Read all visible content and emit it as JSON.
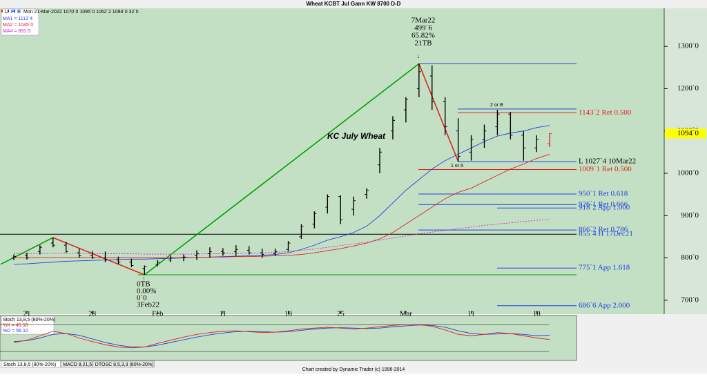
{
  "chart_data": {
    "type": "ohlc",
    "title": "Wheat KCBT Jul Gann KW 8700 D-D",
    "toolbar": [
      "L",
      "F",
      "R"
    ],
    "quote": "Mon 21-Mar-2022   1070`0   1095`0   1062`2   1094`0   32`0",
    "ma_legend": [
      {
        "label": "MA1 = 1113`4",
        "color": "#2040e0"
      },
      {
        "label": "MA2 = 1045`0",
        "color": "#e02020"
      },
      {
        "label": "MA4 = 891`5",
        "color": "#d020d0"
      }
    ],
    "ylim": [
      667,
      1390
    ],
    "yticks": [
      {
        "value": 1300,
        "label": "1300`0"
      },
      {
        "value": 1200,
        "label": "1200`0"
      },
      {
        "value": 1100,
        "label": "1100`0"
      },
      {
        "value": 1000,
        "label": "1000`0"
      },
      {
        "value": 900,
        "label": "900`0"
      },
      {
        "value": 800,
        "label": "800`0"
      },
      {
        "value": 700,
        "label": "700`0"
      }
    ],
    "last_price": {
      "value": 1094,
      "label": "1094`0"
    },
    "xticks": [
      {
        "value": 1,
        "label": "21"
      },
      {
        "value": 6,
        "label": "28"
      },
      {
        "value": 11,
        "label": "Feb"
      },
      {
        "value": 16,
        "label": "11"
      },
      {
        "value": 21,
        "label": "18"
      },
      {
        "value": 25,
        "label": "25"
      },
      {
        "value": 30,
        "label": "Mar"
      },
      {
        "value": 35,
        "label": "11"
      },
      {
        "value": 40,
        "label": "18"
      }
    ],
    "bar_color": "#000000",
    "last_bar_color": "#e02020",
    "bars": [
      {
        "o": 800,
        "h": 808,
        "l": 795,
        "c": 803
      },
      {
        "o": 805,
        "h": 812,
        "l": 796,
        "c": 800
      },
      {
        "o": 815,
        "h": 830,
        "l": 808,
        "c": 825
      },
      {
        "o": 835,
        "h": 848,
        "l": 825,
        "c": 830
      },
      {
        "o": 830,
        "h": 838,
        "l": 812,
        "c": 815
      },
      {
        "o": 812,
        "h": 822,
        "l": 800,
        "c": 805
      },
      {
        "o": 806,
        "h": 816,
        "l": 798,
        "c": 800
      },
      {
        "o": 800,
        "h": 815,
        "l": 790,
        "c": 795
      },
      {
        "o": 795,
        "h": 803,
        "l": 785,
        "c": 790
      },
      {
        "o": 790,
        "h": 798,
        "l": 778,
        "c": 782
      },
      {
        "o": 775,
        "h": 782,
        "l": 760,
        "c": 780
      },
      {
        "o": 785,
        "h": 795,
        "l": 780,
        "c": 790
      },
      {
        "o": 795,
        "h": 805,
        "l": 790,
        "c": 800
      },
      {
        "o": 800,
        "h": 808,
        "l": 792,
        "c": 802
      },
      {
        "o": 805,
        "h": 818,
        "l": 795,
        "c": 810
      },
      {
        "o": 810,
        "h": 825,
        "l": 800,
        "c": 815
      },
      {
        "o": 815,
        "h": 823,
        "l": 805,
        "c": 812
      },
      {
        "o": 815,
        "h": 830,
        "l": 805,
        "c": 820
      },
      {
        "o": 818,
        "h": 828,
        "l": 808,
        "c": 812
      },
      {
        "o": 812,
        "h": 822,
        "l": 800,
        "c": 808
      },
      {
        "o": 810,
        "h": 822,
        "l": 805,
        "c": 815
      },
      {
        "o": 820,
        "h": 840,
        "l": 815,
        "c": 835
      },
      {
        "o": 850,
        "h": 880,
        "l": 845,
        "c": 875
      },
      {
        "o": 880,
        "h": 910,
        "l": 870,
        "c": 905
      },
      {
        "o": 920,
        "h": 950,
        "l": 905,
        "c": 945
      },
      {
        "o": 945,
        "h": 948,
        "l": 880,
        "c": 890
      },
      {
        "o": 915,
        "h": 945,
        "l": 900,
        "c": 935
      },
      {
        "o": 950,
        "h": 965,
        "l": 940,
        "c": 960
      },
      {
        "o": 1020,
        "h": 1060,
        "l": 1000,
        "c": 1050
      },
      {
        "o": 1100,
        "h": 1135,
        "l": 1080,
        "c": 1125
      },
      {
        "o": 1150,
        "h": 1180,
        "l": 1120,
        "c": 1175
      },
      {
        "o": 1200,
        "h": 1259,
        "l": 1180,
        "c": 1240
      },
      {
        "o": 1230,
        "h": 1255,
        "l": 1150,
        "c": 1170
      },
      {
        "o": 1170,
        "h": 1180,
        "l": 1090,
        "c": 1110
      },
      {
        "o": 1100,
        "h": 1130,
        "l": 1028,
        "c": 1040
      },
      {
        "o": 1050,
        "h": 1090,
        "l": 1030,
        "c": 1080
      },
      {
        "o": 1080,
        "h": 1115,
        "l": 1060,
        "c": 1100
      },
      {
        "o": 1110,
        "h": 1150,
        "l": 1090,
        "c": 1140
      },
      {
        "o": 1140,
        "h": 1145,
        "l": 1080,
        "c": 1090
      },
      {
        "o": 1090,
        "h": 1100,
        "l": 1030,
        "c": 1060
      },
      {
        "o": 1060,
        "h": 1090,
        "l": 1050,
        "c": 1080
      },
      {
        "o": 1070,
        "h": 1095,
        "l": 1062,
        "c": 1094
      }
    ],
    "series": [
      {
        "name": "MA1",
        "color": "#2040e0",
        "values": [
          785,
          786,
          788,
          790,
          792,
          793,
          794,
          795,
          796,
          797,
          797,
          798,
          799,
          800,
          801,
          802,
          803,
          804,
          805,
          806,
          808,
          812,
          820,
          830,
          842,
          850,
          860,
          875,
          900,
          930,
          960,
          985,
          1010,
          1030,
          1045,
          1060,
          1075,
          1088,
          1095,
          1100,
          1108,
          1113
        ]
      },
      {
        "name": "MA2",
        "color": "#e02020",
        "values": [
          800,
          800,
          801,
          801,
          801,
          801,
          801,
          800,
          800,
          800,
          800,
          800,
          800,
          801,
          801,
          802,
          802,
          803,
          803,
          804,
          805,
          806,
          808,
          812,
          817,
          822,
          828,
          835,
          845,
          860,
          880,
          900,
          920,
          940,
          955,
          965,
          980,
          995,
          1010,
          1022,
          1035,
          1045
        ]
      },
      {
        "name": "MA4",
        "color": "#d020d0",
        "dashed": true,
        "values": [
          810,
          810,
          811,
          811,
          811,
          811,
          810,
          810,
          810,
          810,
          809,
          809,
          809,
          809,
          809,
          810,
          810,
          811,
          811,
          812,
          813,
          815,
          818,
          821,
          825,
          829,
          833,
          837,
          842,
          847,
          852,
          857,
          861,
          865,
          869,
          873,
          877,
          880,
          883,
          886,
          889,
          891
        ]
      }
    ],
    "swings": [
      {
        "color": "#00a000",
        "x": [
          -1,
          3
        ],
        "y": [
          785,
          848
        ]
      },
      {
        "color": "#e02020",
        "x": [
          3,
          10
        ],
        "y": [
          848,
          760
        ]
      },
      {
        "color": "#00a000",
        "x": [
          10,
          31
        ],
        "y": [
          760,
          1259
        ]
      },
      {
        "color": "#e02020",
        "x": [
          31,
          34
        ],
        "y": [
          1259,
          1028
        ]
      }
    ],
    "levels": [
      {
        "value": 1259,
        "color": "#2040e0"
      },
      {
        "value": 1152,
        "color": "#2040e0"
      },
      {
        "value": 1143,
        "color": "#e02020",
        "label": "1143`2 Ret 0.500"
      },
      {
        "value": 1027.5,
        "color": "#2040e0",
        "label": "L 1027`4 10Mar22",
        "label_color": "#000000"
      },
      {
        "value": 1009,
        "color": "#e02020",
        "label": "1009`1 Ret 0.500"
      },
      {
        "value": 951,
        "color": "#2040e0",
        "label": "950`1 Ret 0.618"
      },
      {
        "value": 926,
        "color": "#2040e0",
        "label": "926`1 Ret 0.666"
      },
      {
        "value": 918,
        "color": "#2040e0",
        "label": "918`2 App 1.000"
      },
      {
        "value": 866,
        "color": "#2040e0",
        "label": "866`2 Ret 0.786"
      },
      {
        "value": 856,
        "color": "#000000",
        "label": "855`4 H 17Dec21",
        "label_color": "#2040e0"
      },
      {
        "value": 776,
        "color": "#2040e0",
        "label": "775`1 App 1.618"
      },
      {
        "value": 760,
        "color": "#00a000"
      },
      {
        "value": 687,
        "color": "#2040e0",
        "label": "686`6 App 2.000"
      }
    ],
    "annotations": {
      "high": [
        "7Mar22",
        "499`6",
        "65.82%",
        "21TB"
      ],
      "low": [
        "0TB",
        "0.00%",
        "0`0",
        "3Feb22"
      ],
      "name": "KC July Wheat",
      "wave_b": "2 or B",
      "wave_a": "1 or A"
    },
    "stoch": {
      "legend": [
        "Stoch 13,8,5 (80%-20%)",
        "%K = 46.58",
        "%D = 56.10"
      ],
      "ylim": [
        0,
        100
      ],
      "levels": [
        80,
        20
      ],
      "k": {
        "color": "#e02020",
        "values": [
          40,
          45,
          55,
          65,
          60,
          50,
          42,
          35,
          30,
          28,
          30,
          38,
          45,
          52,
          58,
          62,
          65,
          66,
          64,
          62,
          63,
          66,
          70,
          72,
          74,
          72,
          70,
          72,
          75,
          78,
          80,
          80,
          76,
          68,
          58,
          55,
          58,
          62,
          60,
          55,
          50,
          46.58
        ]
      },
      "d": {
        "color": "#2040e0",
        "values": [
          42,
          44,
          50,
          58,
          60,
          56,
          48,
          40,
          34,
          30,
          30,
          34,
          40,
          46,
          52,
          57,
          61,
          64,
          65,
          64,
          63,
          64,
          67,
          70,
          72,
          73,
          72,
          71,
          72,
          75,
          77,
          79,
          78,
          74,
          66,
          60,
          58,
          59,
          60,
          58,
          55,
          56.1
        ]
      }
    },
    "tabs": [
      "Stoch 13,8,5 (80%-20%)",
      "MACD 8,21,5",
      "DTOSC 8,5,3,3 (80%-20%)"
    ],
    "footer": "Chart created by Dynamic Trader  (c) 1996-2014"
  }
}
